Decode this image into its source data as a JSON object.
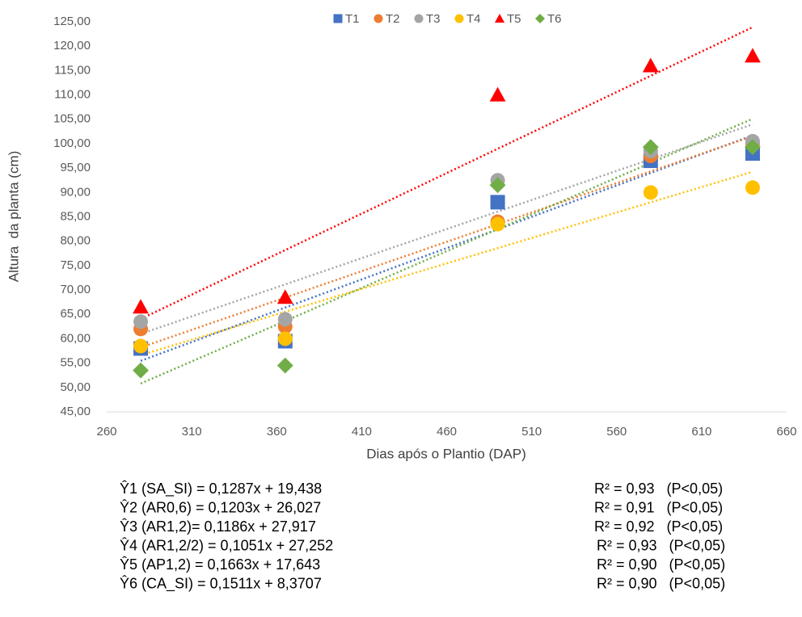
{
  "chart_data": {
    "type": "scatter",
    "xlabel": "Dias após o Plantio (DAP)",
    "ylabel": "Altura  da planta (cm)",
    "x": [
      280,
      365,
      490,
      580,
      640
    ],
    "xlim": [
      260,
      660
    ],
    "xticks": [
      260,
      310,
      360,
      410,
      460,
      510,
      560,
      610,
      660
    ],
    "ylim": [
      45,
      125
    ],
    "yticks": [
      {
        "value": 45,
        "label": "45,00"
      },
      {
        "value": 50,
        "label": "50,00"
      },
      {
        "value": 55,
        "label": "55,00"
      },
      {
        "value": 60,
        "label": "60,00"
      },
      {
        "value": 65,
        "label": "65,00"
      },
      {
        "value": 70,
        "label": "70,00"
      },
      {
        "value": 75,
        "label": "75,00"
      },
      {
        "value": 80,
        "label": "80,00"
      },
      {
        "value": 85,
        "label": "85,00"
      },
      {
        "value": 90,
        "label": "90,00"
      },
      {
        "value": 95,
        "label": "95,00"
      },
      {
        "value": 100,
        "label": "100,00"
      },
      {
        "value": 105,
        "label": "105,00"
      },
      {
        "value": 110,
        "label": "110,00"
      },
      {
        "value": 115,
        "label": "115,00"
      },
      {
        "value": 120,
        "label": "120,00"
      },
      {
        "value": 125,
        "label": "125,00"
      }
    ],
    "grid": false,
    "trendline": true,
    "legend": "top",
    "series": [
      {
        "name": "T1",
        "color": "#4472c4",
        "marker": "square",
        "values": [
          58,
          59.5,
          88,
          96.5,
          98
        ]
      },
      {
        "name": "T2",
        "color": "#ed7d31",
        "marker": "circle",
        "values": [
          62,
          62.5,
          84,
          97.5,
          100
        ]
      },
      {
        "name": "T3",
        "color": "#a5a5a5",
        "marker": "circle",
        "values": [
          63.5,
          64,
          92.5,
          98.5,
          100.5
        ]
      },
      {
        "name": "T4",
        "color": "#ffc000",
        "marker": "circle",
        "values": [
          58.5,
          60,
          83.5,
          90,
          91
        ]
      },
      {
        "name": "T5",
        "color": "#ff0000",
        "marker": "triangle",
        "values": [
          66.5,
          68.5,
          110,
          116,
          118
        ]
      },
      {
        "name": "T6",
        "color": "#70ad47",
        "marker": "diamond",
        "values": [
          53.5,
          54.5,
          91.5,
          99.3,
          99.3
        ]
      }
    ],
    "equations": [
      {
        "equation": "Ŷ1 (SA_SI) = 0,1287x + 19,438",
        "r2": "R² = 0,93   (P<0,05)"
      },
      {
        "equation": "Ŷ2 (AR0,6) = 0,1203x + 26,027",
        "r2": "R² = 0,91   (P<0,05)"
      },
      {
        "equation": "Ŷ3 (AR1,2)= 0,1186x + 27,917",
        "r2": "R² = 0,92   (P<0,05)"
      },
      {
        "equation": "Ŷ4 (AR1,2/2) = 0,1051x + 27,252",
        "r2": "R² = 0,93   (P<0,05)"
      },
      {
        "equation": "Ŷ5 (AP1,2) = 0,1663x + 17,643",
        "r2": "R² = 0,90   (P<0,05)"
      },
      {
        "equation": "Ŷ6 (CA_SI) = 0,1511x + 8,3707",
        "r2": "R² = 0,90   (P<0,05)"
      }
    ]
  }
}
